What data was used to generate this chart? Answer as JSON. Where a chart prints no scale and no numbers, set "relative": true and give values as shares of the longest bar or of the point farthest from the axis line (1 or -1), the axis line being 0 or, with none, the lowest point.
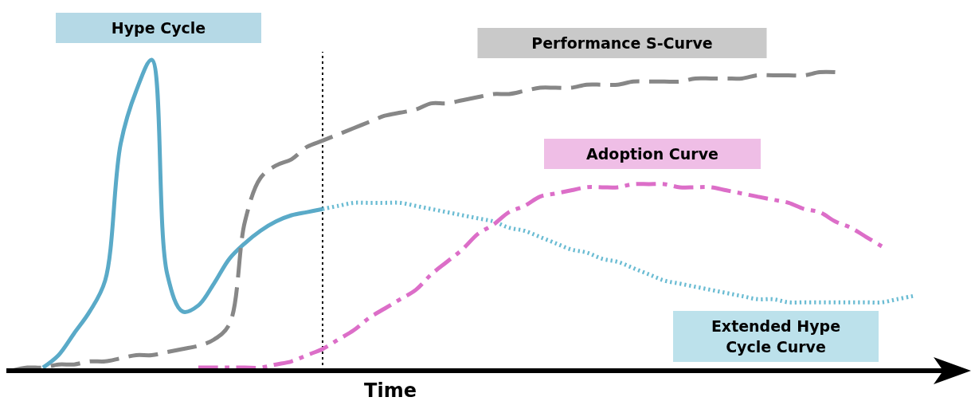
{
  "chart_data": {
    "type": "line",
    "relative": true,
    "xlabel": "Time",
    "categories": [
      null,
      null,
      null,
      null,
      null,
      null,
      null,
      null,
      null,
      null,
      null,
      null,
      null,
      null,
      null,
      null,
      null,
      null,
      null,
      null,
      null,
      null,
      null,
      null,
      null,
      null,
      null,
      null,
      null,
      null,
      null,
      null,
      null,
      null,
      null,
      null,
      null,
      null,
      null,
      null,
      null,
      null,
      null,
      null,
      null,
      null,
      null,
      null,
      null,
      null,
      null,
      null,
      null,
      null,
      null,
      null,
      null,
      null,
      null
    ],
    "series": [
      {
        "name": "Hype Cycle",
        "color": "#5aaac8",
        "line_style": "solid",
        "values": [
          null,
          null,
          0.01,
          0.05,
          0.12,
          0.19,
          0.29,
          0.73,
          0.9,
          1.0,
          0.31,
          0.19,
          0.21,
          0.28,
          0.36,
          0.41,
          0.45,
          0.48,
          0.5,
          0.51,
          0.52,
          null,
          null,
          null,
          null,
          null,
          null,
          null,
          null,
          null,
          null,
          null,
          null,
          null,
          null,
          null,
          null,
          null,
          null,
          null,
          null,
          null,
          null,
          null,
          null,
          null,
          null,
          null,
          null,
          null,
          null,
          null,
          null,
          null,
          null,
          null,
          null,
          null,
          null
        ]
      },
      {
        "name": "Extended Hype Cycle Curve",
        "color": "#6bbcd3",
        "line_style": "dotted",
        "values": [
          null,
          null,
          null,
          null,
          null,
          null,
          null,
          null,
          null,
          null,
          null,
          null,
          null,
          null,
          null,
          null,
          null,
          null,
          null,
          null,
          0.52,
          0.53,
          0.54,
          0.54,
          0.54,
          0.54,
          0.53,
          0.52,
          0.51,
          0.5,
          0.49,
          0.48,
          0.46,
          0.45,
          0.43,
          0.41,
          0.39,
          0.38,
          0.36,
          0.35,
          0.33,
          0.31,
          0.29,
          0.28,
          0.27,
          0.26,
          0.25,
          0.24,
          0.23,
          0.23,
          0.22,
          0.22,
          0.22,
          0.22,
          0.22,
          0.22,
          0.22,
          0.23,
          0.24
        ]
      },
      {
        "name": "Performance S-Curve",
        "color": "#878787",
        "line_style": "dashed",
        "values": [
          0,
          0.01,
          0.01,
          0.02,
          0.02,
          0.03,
          0.03,
          0.04,
          0.05,
          0.05,
          0.06,
          0.07,
          0.08,
          0.1,
          0.15,
          0.48,
          0.62,
          0.66,
          0.68,
          0.72,
          0.74,
          0.76,
          0.78,
          0.8,
          0.82,
          0.83,
          0.84,
          0.86,
          0.86,
          0.87,
          0.88,
          0.89,
          0.89,
          0.9,
          0.91,
          0.91,
          0.91,
          0.92,
          0.92,
          0.92,
          0.93,
          0.93,
          0.93,
          0.93,
          0.94,
          0.94,
          0.94,
          0.94,
          0.95,
          0.95,
          0.95,
          0.95,
          0.96,
          0.96,
          null,
          null,
          null,
          null,
          null
        ]
      },
      {
        "name": "Adoption Curve",
        "color": "#dc6ec8",
        "line_style": "dashdot",
        "values": [
          null,
          null,
          null,
          null,
          null,
          null,
          null,
          null,
          null,
          null,
          null,
          null,
          0.01,
          0.01,
          0.01,
          0.01,
          0.01,
          0.02,
          0.03,
          0.05,
          0.07,
          0.1,
          0.13,
          0.17,
          0.2,
          0.23,
          0.26,
          0.31,
          0.35,
          0.39,
          0.44,
          0.47,
          0.51,
          0.53,
          0.56,
          0.57,
          0.58,
          0.59,
          0.59,
          0.59,
          0.6,
          0.6,
          0.6,
          0.59,
          0.59,
          0.59,
          0.58,
          0.57,
          0.56,
          0.55,
          0.54,
          0.52,
          0.51,
          0.48,
          0.46,
          0.43,
          0.4,
          null,
          null
        ]
      }
    ]
  }
}
